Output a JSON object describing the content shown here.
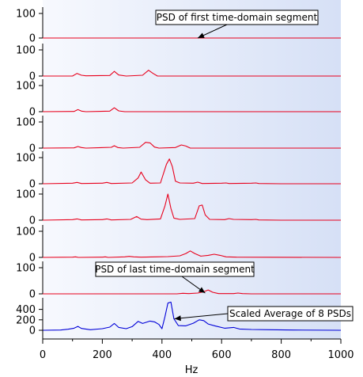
{
  "chart_data": {
    "type": "line",
    "xlabel": "Hz",
    "xlim": [
      0,
      1000
    ],
    "xticks": [
      "0",
      "200",
      "400",
      "600",
      "800",
      "1000"
    ],
    "panels": [
      {
        "id": "segment-1",
        "ylim": [
          0,
          100
        ],
        "yticks": [
          "0",
          "100"
        ],
        "color": "#e8001c",
        "points": [
          [
            0,
            0
          ],
          [
            1000,
            0
          ]
        ]
      },
      {
        "id": "segment-2",
        "ylim": [
          0,
          100
        ],
        "yticks": [
          "0",
          "100"
        ],
        "color": "#e8001c",
        "points": [
          [
            0,
            0
          ],
          [
            100,
            0
          ],
          [
            115,
            10
          ],
          [
            130,
            3
          ],
          [
            145,
            1
          ],
          [
            225,
            2
          ],
          [
            240,
            18
          ],
          [
            255,
            4
          ],
          [
            280,
            0
          ],
          [
            335,
            3
          ],
          [
            355,
            22
          ],
          [
            370,
            10
          ],
          [
            385,
            0
          ],
          [
            1000,
            0
          ]
        ]
      },
      {
        "id": "segment-3",
        "ylim": [
          0,
          100
        ],
        "yticks": [
          "0",
          "100"
        ],
        "color": "#e8001c",
        "points": [
          [
            0,
            0
          ],
          [
            105,
            1
          ],
          [
            118,
            8
          ],
          [
            130,
            2
          ],
          [
            145,
            0
          ],
          [
            225,
            2
          ],
          [
            240,
            15
          ],
          [
            255,
            3
          ],
          [
            275,
            0
          ],
          [
            1000,
            0
          ]
        ]
      },
      {
        "id": "segment-4",
        "ylim": [
          0,
          100
        ],
        "yticks": [
          "0",
          "100"
        ],
        "color": "#e8001c",
        "points": [
          [
            0,
            0
          ],
          [
            105,
            1
          ],
          [
            118,
            6
          ],
          [
            130,
            2
          ],
          [
            145,
            0
          ],
          [
            230,
            3
          ],
          [
            240,
            9
          ],
          [
            252,
            2
          ],
          [
            270,
            0
          ],
          [
            325,
            3
          ],
          [
            345,
            22
          ],
          [
            360,
            20
          ],
          [
            375,
            4
          ],
          [
            390,
            0
          ],
          [
            445,
            2
          ],
          [
            465,
            12
          ],
          [
            480,
            8
          ],
          [
            495,
            0
          ],
          [
            1000,
            0
          ]
        ]
      },
      {
        "id": "segment-5",
        "ylim": [
          0,
          100
        ],
        "yticks": [
          "0",
          "100"
        ],
        "color": "#e8001c",
        "points": [
          [
            0,
            0
          ],
          [
            100,
            2
          ],
          [
            115,
            5
          ],
          [
            130,
            1
          ],
          [
            200,
            2
          ],
          [
            215,
            5
          ],
          [
            230,
            1
          ],
          [
            300,
            3
          ],
          [
            320,
            22
          ],
          [
            330,
            45
          ],
          [
            345,
            15
          ],
          [
            360,
            2
          ],
          [
            395,
            3
          ],
          [
            415,
            75
          ],
          [
            425,
            95
          ],
          [
            435,
            65
          ],
          [
            445,
            10
          ],
          [
            460,
            3
          ],
          [
            505,
            2
          ],
          [
            520,
            6
          ],
          [
            535,
            1
          ],
          [
            600,
            2
          ],
          [
            615,
            3
          ],
          [
            625,
            1
          ],
          [
            700,
            2
          ],
          [
            715,
            3
          ],
          [
            725,
            1
          ],
          [
            800,
            0
          ],
          [
            1000,
            0
          ]
        ]
      },
      {
        "id": "segment-6",
        "ylim": [
          0,
          100
        ],
        "yticks": [
          "0",
          "100"
        ],
        "color": "#e8001c",
        "points": [
          [
            0,
            0
          ],
          [
            100,
            2
          ],
          [
            115,
            5
          ],
          [
            130,
            1
          ],
          [
            200,
            2
          ],
          [
            215,
            5
          ],
          [
            230,
            1
          ],
          [
            295,
            3
          ],
          [
            315,
            14
          ],
          [
            330,
            4
          ],
          [
            350,
            2
          ],
          [
            395,
            5
          ],
          [
            410,
            55
          ],
          [
            420,
            100
          ],
          [
            430,
            45
          ],
          [
            440,
            8
          ],
          [
            460,
            3
          ],
          [
            510,
            6
          ],
          [
            525,
            55
          ],
          [
            535,
            58
          ],
          [
            545,
            20
          ],
          [
            560,
            3
          ],
          [
            610,
            2
          ],
          [
            625,
            6
          ],
          [
            640,
            3
          ],
          [
            700,
            2
          ],
          [
            715,
            3
          ],
          [
            725,
            1
          ],
          [
            800,
            0
          ],
          [
            1000,
            0
          ]
        ]
      },
      {
        "id": "segment-7",
        "ylim": [
          0,
          100
        ],
        "yticks": [
          "0",
          "100"
        ],
        "color": "#e8001c",
        "points": [
          [
            0,
            0
          ],
          [
            100,
            1
          ],
          [
            110,
            2
          ],
          [
            120,
            0
          ],
          [
            200,
            1
          ],
          [
            210,
            2
          ],
          [
            220,
            0
          ],
          [
            275,
            2
          ],
          [
            290,
            4
          ],
          [
            305,
            2
          ],
          [
            330,
            1
          ],
          [
            380,
            2
          ],
          [
            420,
            3
          ],
          [
            460,
            6
          ],
          [
            480,
            15
          ],
          [
            495,
            25
          ],
          [
            510,
            15
          ],
          [
            530,
            5
          ],
          [
            555,
            8
          ],
          [
            575,
            12
          ],
          [
            595,
            8
          ],
          [
            615,
            2
          ],
          [
            650,
            1
          ],
          [
            1000,
            0
          ]
        ]
      },
      {
        "id": "segment-8",
        "ylim": [
          0,
          100
        ],
        "yticks": [
          "0",
          "100"
        ],
        "color": "#e8001c",
        "points": [
          [
            0,
            0
          ],
          [
            450,
            0
          ],
          [
            470,
            2
          ],
          [
            490,
            1
          ],
          [
            520,
            3
          ],
          [
            540,
            8
          ],
          [
            555,
            15
          ],
          [
            570,
            6
          ],
          [
            590,
            1
          ],
          [
            640,
            1
          ],
          [
            655,
            3
          ],
          [
            670,
            1
          ],
          [
            700,
            0
          ],
          [
            1000,
            0
          ]
        ]
      },
      {
        "id": "average",
        "ylim": [
          0,
          500
        ],
        "yticks": [
          "0",
          "200",
          "400"
        ],
        "color": "#0000d8",
        "points": [
          [
            0,
            0
          ],
          [
            60,
            5
          ],
          [
            85,
            20
          ],
          [
            105,
            40
          ],
          [
            118,
            75
          ],
          [
            130,
            35
          ],
          [
            160,
            10
          ],
          [
            200,
            30
          ],
          [
            225,
            60
          ],
          [
            240,
            130
          ],
          [
            255,
            55
          ],
          [
            280,
            30
          ],
          [
            300,
            70
          ],
          [
            320,
            170
          ],
          [
            335,
            130
          ],
          [
            360,
            175
          ],
          [
            375,
            160
          ],
          [
            390,
            110
          ],
          [
            400,
            30
          ],
          [
            410,
            260
          ],
          [
            420,
            520
          ],
          [
            430,
            540
          ],
          [
            440,
            220
          ],
          [
            455,
            90
          ],
          [
            480,
            85
          ],
          [
            505,
            135
          ],
          [
            525,
            200
          ],
          [
            540,
            185
          ],
          [
            555,
            120
          ],
          [
            580,
            80
          ],
          [
            610,
            40
          ],
          [
            640,
            55
          ],
          [
            660,
            25
          ],
          [
            700,
            15
          ],
          [
            760,
            10
          ],
          [
            840,
            5
          ],
          [
            1000,
            0
          ]
        ]
      }
    ],
    "annotations": [
      {
        "text": "PSD of first time-domain segment",
        "panel": 0,
        "target": [
          520,
          0
        ]
      },
      {
        "text": "PSD of last time-domain segment",
        "panel": 7,
        "target": [
          545,
          3
        ]
      },
      {
        "text": "Scaled Average of 8 PSDs",
        "panel": 8,
        "target": [
          442,
          220
        ]
      }
    ],
    "grid": false,
    "legend": "none"
  }
}
